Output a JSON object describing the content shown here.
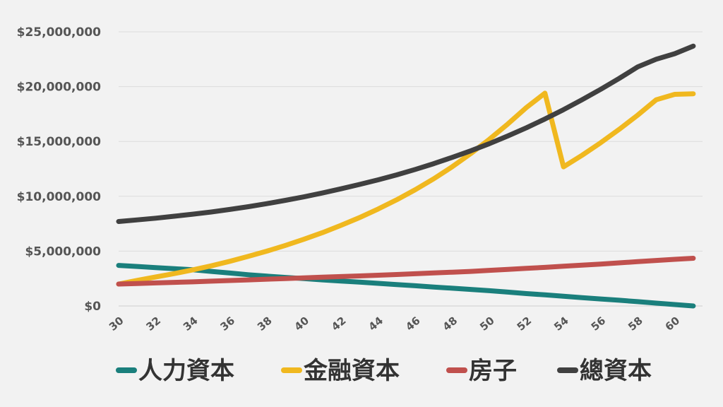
{
  "chart_data": {
    "type": "line",
    "title": "",
    "xlabel": "",
    "ylabel": "",
    "x": [
      30,
      31,
      32,
      33,
      34,
      35,
      36,
      37,
      38,
      39,
      40,
      41,
      42,
      43,
      44,
      45,
      46,
      47,
      48,
      49,
      50,
      51,
      52,
      53,
      54,
      55,
      56,
      57,
      58,
      59,
      60,
      61
    ],
    "x_tick_labels": [
      "30",
      "32",
      "34",
      "36",
      "38",
      "40",
      "42",
      "44",
      "46",
      "48",
      "50",
      "52",
      "54",
      "56",
      "58",
      "60"
    ],
    "y_tick_labels": [
      "$0",
      "$5,000,000",
      "$10,000,000",
      "$15,000,000",
      "$20,000,000",
      "$25,000,000"
    ],
    "ylim": [
      0,
      25000000
    ],
    "grid": true,
    "legend_position": "bottom",
    "series": [
      {
        "name": "人力資本",
        "color": "#1a7f7c",
        "values": [
          3700000,
          3600000,
          3500000,
          3400000,
          3300000,
          3150000,
          3000000,
          2850000,
          2720000,
          2600000,
          2500000,
          2380000,
          2270000,
          2170000,
          2060000,
          1950000,
          1840000,
          1730000,
          1620000,
          1510000,
          1390000,
          1260000,
          1130000,
          1010000,
          880000,
          760000,
          640000,
          520000,
          390000,
          260000,
          130000,
          0
        ]
      },
      {
        "name": "金融資本",
        "color": "#f0b81f",
        "values": [
          2000000,
          2330000,
          2640000,
          2950000,
          3290000,
          3660000,
          4070000,
          4520000,
          5000000,
          5520000,
          6080000,
          6690000,
          7350000,
          8060000,
          8840000,
          9680000,
          10600000,
          11600000,
          12700000,
          13900000,
          15200000,
          16600000,
          18100000,
          19400000,
          12690000,
          13740000,
          14880000,
          16100000,
          17400000,
          18800000,
          19300000,
          19350000
        ]
      },
      {
        "name": "房子",
        "color": "#c0504d",
        "values": [
          2000000,
          2050000,
          2100000,
          2150000,
          2200000,
          2260000,
          2320000,
          2380000,
          2440000,
          2500000,
          2560000,
          2620000,
          2680000,
          2740000,
          2800000,
          2870000,
          2940000,
          3010000,
          3080000,
          3150000,
          3250000,
          3340000,
          3430000,
          3520000,
          3620000,
          3720000,
          3820000,
          3930000,
          4040000,
          4150000,
          4250000,
          4350000
        ]
      },
      {
        "name": "總資本",
        "color": "#404040",
        "values": [
          7700000,
          7850000,
          8000000,
          8180000,
          8370000,
          8570000,
          8800000,
          9050000,
          9330000,
          9630000,
          9950000,
          10300000,
          10680000,
          11080000,
          11500000,
          11950000,
          12450000,
          12980000,
          13550000,
          14150000,
          14800000,
          15500000,
          16250000,
          17050000,
          17900000,
          18800000,
          19750000,
          20750000,
          21800000,
          22500000,
          23000000,
          23700000
        ]
      }
    ]
  }
}
